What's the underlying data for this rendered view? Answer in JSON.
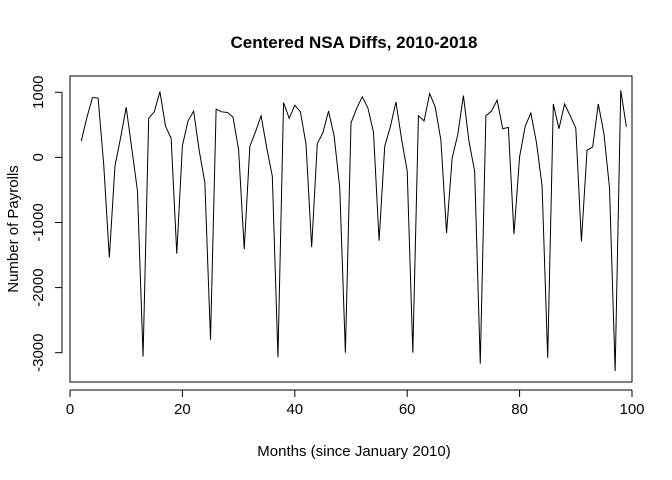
{
  "chart_data": {
    "type": "line",
    "title": "Centered NSA Diffs, 2010-2018",
    "xlabel": "Months (since January 2010)",
    "ylabel": "Number of Payrolls",
    "xlim": [
      0,
      100
    ],
    "ylim": [
      -3450,
      1250
    ],
    "x_ticks": [
      0,
      20,
      40,
      60,
      80,
      100
    ],
    "y_ticks": [
      -3000,
      -2000,
      -1000,
      0,
      1000
    ],
    "grid": false,
    "legend": "none",
    "series": [
      {
        "x": [
          2,
          3,
          4,
          5,
          6,
          7,
          8,
          9,
          10,
          11,
          12,
          13,
          14,
          15,
          16,
          17,
          18,
          19,
          20,
          21,
          22,
          23,
          24,
          25,
          26,
          27,
          28,
          29,
          30,
          31,
          32,
          33,
          34,
          35,
          36,
          37,
          38,
          39,
          40,
          41,
          42,
          43,
          44,
          45,
          46,
          47,
          48,
          49,
          50,
          51,
          52,
          53,
          54,
          55,
          56,
          57,
          58,
          59,
          60,
          61,
          62,
          63,
          64,
          65,
          66,
          67,
          68,
          69,
          70,
          71,
          72,
          73,
          74,
          75,
          76,
          77,
          78,
          79,
          80,
          81,
          82,
          83,
          84,
          85,
          86,
          87,
          88,
          89,
          90,
          91,
          92,
          93,
          94,
          95,
          96,
          97,
          98,
          99
        ],
        "y": [
          250,
          610,
          920,
          910,
          -110,
          -1540,
          -130,
          300,
          770,
          130,
          -510,
          -3060,
          600,
          700,
          1010,
          480,
          290,
          -1480,
          180,
          560,
          710,
          100,
          -390,
          -2800,
          740,
          700,
          690,
          620,
          120,
          -1410,
          170,
          390,
          640,
          150,
          -290,
          -3070,
          840,
          600,
          800,
          700,
          200,
          -1380,
          210,
          380,
          710,
          330,
          -470,
          -3000,
          530,
          750,
          930,
          760,
          390,
          -1280,
          170,
          470,
          850,
          280,
          -210,
          -3000,
          640,
          560,
          980,
          770,
          260,
          -1160,
          -10,
          350,
          950,
          240,
          -210,
          -3170,
          640,
          710,
          880,
          440,
          460,
          -1180,
          10,
          480,
          680,
          230,
          -440,
          -3080,
          820,
          440,
          820,
          640,
          450,
          -1290,
          110,
          160,
          820,
          370,
          -470,
          -3280,
          1030,
          470
        ]
      }
    ]
  }
}
